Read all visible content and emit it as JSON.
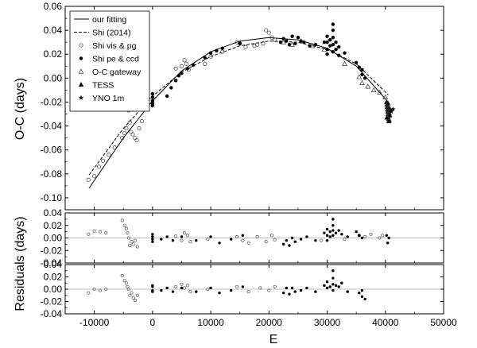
{
  "chart_data": [
    {
      "type": "scatter",
      "panel": "top",
      "xlabel": "",
      "ylabel": "O-C (days)",
      "xlim": [
        -15000,
        50000
      ],
      "ylim": [
        -0.11,
        0.06
      ],
      "yticks": [
        "0.06",
        "0.04",
        "0.02",
        "0.00",
        "-0.02",
        "-0.04",
        "-0.06",
        "-0.08",
        "-0.10"
      ],
      "ytick_values": [
        0.06,
        0.04,
        0.02,
        0.0,
        -0.02,
        -0.04,
        -0.06,
        -0.08,
        -0.1
      ],
      "legend_position": "top-left",
      "legend": [
        {
          "label": "our fitting",
          "style": "solid-line"
        },
        {
          "label": "Shi (2014)",
          "style": "dashed-line"
        },
        {
          "label": "Shi vis & pg",
          "style": "open-circle"
        },
        {
          "label": "Shi pe & ccd",
          "style": "filled-circle"
        },
        {
          "label": "O-C gateway",
          "style": "open-triangle"
        },
        {
          "label": "TESS",
          "style": "filled-triangle"
        },
        {
          "label": "YNO 1m",
          "style": "star"
        }
      ],
      "curves": {
        "our_fitting": {
          "x": [
            -10900,
            -5000,
            0,
            5000,
            10000,
            15000,
            20000,
            25000,
            30000,
            35000,
            40500
          ],
          "y": [
            -0.092,
            -0.05,
            -0.019,
            0.006,
            0.022,
            0.031,
            0.034,
            0.032,
            0.025,
            0.01,
            -0.02
          ]
        },
        "shi_2014": {
          "x": [
            -10900,
            -5000,
            0,
            5000,
            10000,
            15000,
            20000,
            25000,
            30000,
            35000,
            40500
          ],
          "y": [
            -0.081,
            -0.042,
            -0.015,
            0.005,
            0.018,
            0.027,
            0.031,
            0.03,
            0.024,
            0.012,
            -0.014
          ]
        }
      },
      "series": [
        {
          "name": "Shi vis & pg",
          "marker": "open-circle",
          "x": [
            -11000,
            -10000,
            -9200,
            -8500,
            -7500,
            -6500,
            -5200,
            -4800,
            -4500,
            -4300,
            -4100,
            -3900,
            -3700,
            -3400,
            -3000,
            -2700,
            -2300,
            -1800,
            4000,
            5000,
            5500,
            5800,
            6200,
            9000,
            10000,
            12000,
            14500,
            15000,
            16000,
            17500,
            18000,
            19000,
            19500,
            20000,
            20500,
            21000
          ],
          "y": [
            -0.085,
            -0.082,
            -0.074,
            -0.069,
            -0.064,
            -0.058,
            -0.05,
            -0.046,
            -0.042,
            -0.017,
            -0.027,
            -0.037,
            -0.045,
            -0.047,
            -0.05,
            -0.052,
            -0.042,
            -0.036,
            0.008,
            0.01,
            0.015,
            0.012,
            0.007,
            0.012,
            0.018,
            0.022,
            0.03,
            0.029,
            0.026,
            0.027,
            0.028,
            0.029,
            0.04,
            0.038,
            0.034,
            0.032
          ]
        },
        {
          "name": "Shi pe & ccd",
          "marker": "filled-circle",
          "x": [
            0,
            0,
            0,
            0,
            0,
            2500,
            3200,
            4000,
            4500,
            5000,
            6000,
            7000,
            9000,
            10000,
            11000,
            12000,
            15000,
            22000,
            22500,
            23000,
            23500,
            24000,
            24500,
            25000,
            25500,
            26000,
            27000,
            28000,
            29500,
            30000,
            30000,
            30000,
            30000,
            30500,
            30500,
            31000,
            31000,
            31000,
            31000,
            31000,
            31500,
            31500,
            32000,
            32000,
            33000,
            35000,
            35500,
            36000,
            36000,
            36500
          ],
          "y": [
            -0.013,
            -0.016,
            -0.019,
            -0.021,
            -0.023,
            -0.015,
            -0.008,
            -0.002,
            0.002,
            0.004,
            0.008,
            0.011,
            0.017,
            0.021,
            0.023,
            0.025,
            0.029,
            0.03,
            0.033,
            0.031,
            0.028,
            0.035,
            0.029,
            0.034,
            0.031,
            0.03,
            0.027,
            0.028,
            0.03,
            0.035,
            0.03,
            0.024,
            0.02,
            0.032,
            0.027,
            0.045,
            0.04,
            0.034,
            0.028,
            0.022,
            0.03,
            0.024,
            0.026,
            0.019,
            0.021,
            0.013,
            0.009,
            0.007,
            0.003,
            0.0
          ]
        },
        {
          "name": "O-C gateway",
          "marker": "open-triangle",
          "x": [
            22500,
            24000,
            25500,
            27500,
            29500,
            33000,
            35500,
            36000,
            37000,
            38000,
            39000,
            40000
          ],
          "y": [
            0.03,
            0.028,
            0.031,
            0.027,
            0.024,
            0.012,
            0.001,
            -0.004,
            -0.007,
            -0.01,
            -0.012,
            -0.016
          ]
        },
        {
          "name": "TESS",
          "marker": "filled-triangle",
          "x": [
            40200,
            40250,
            40300,
            40350,
            40400,
            40450,
            40500,
            40550,
            40600,
            40650,
            40700,
            40750,
            40800,
            40250,
            40450,
            40650
          ],
          "y": [
            -0.02,
            -0.022,
            -0.024,
            -0.026,
            -0.028,
            -0.03,
            -0.032,
            -0.034,
            -0.036,
            -0.029,
            -0.025,
            -0.031,
            -0.027,
            -0.033,
            -0.021,
            -0.035
          ]
        },
        {
          "name": "YNO 1m",
          "marker": "star",
          "x": [
            41000,
            41300
          ],
          "y": [
            -0.028,
            -0.026
          ]
        }
      ]
    },
    {
      "type": "scatter",
      "panel": "middle",
      "xlim": [
        -15000,
        50000
      ],
      "ylim": [
        -0.04,
        0.04
      ],
      "yticks": [
        "0.04",
        "0.02",
        "0.00",
        "-0.02",
        "-0.04"
      ],
      "ytick_values": [
        0.04,
        0.02,
        0.0,
        -0.02,
        -0.04
      ],
      "series": [
        {
          "name": "open",
          "marker": "open-circle",
          "x": [
            -11000,
            -10000,
            -9000,
            -8000,
            -5200,
            -4800,
            -4500,
            -4300,
            -4100,
            -3900,
            -3600,
            -3300,
            -3000,
            -2600,
            4000,
            5000,
            5500,
            6000,
            6500,
            9500,
            14500,
            15500,
            16500,
            18000,
            19500,
            20500,
            21000,
            29000,
            33000,
            35500,
            36500,
            37500,
            39000,
            39500
          ],
          "y": [
            0.006,
            0.011,
            0.01,
            0.008,
            0.028,
            0.02,
            0.015,
            0.008,
            0.0,
            -0.012,
            -0.006,
            -0.01,
            -0.004,
            -0.014,
            0.003,
            -0.004,
            0.008,
            0.004,
            -0.006,
            -0.002,
            0.002,
            -0.004,
            -0.008,
            0.002,
            -0.006,
            0.004,
            -0.003,
            -0.004,
            -0.002,
            0.004,
            0.002,
            0.006,
            0.0,
            0.004
          ]
        },
        {
          "name": "filled",
          "marker": "filled-circle",
          "x": [
            0,
            0,
            0,
            0,
            1500,
            2500,
            3500,
            5000,
            7500,
            10000,
            11500,
            13500,
            15500,
            22500,
            23000,
            23500,
            24000,
            24500,
            25500,
            26500,
            28000,
            29500,
            30000,
            30000,
            30000,
            30500,
            30500,
            31000,
            31000,
            31000,
            31000,
            31500,
            32000,
            32500,
            33500,
            35000,
            35500,
            36000,
            40200,
            40400,
            40600
          ],
          "y": [
            0.002,
            -0.002,
            -0.006,
            0.006,
            -0.002,
            0.002,
            -0.004,
            0.002,
            -0.004,
            0.002,
            -0.008,
            -0.002,
            0.004,
            -0.01,
            -0.004,
            -0.012,
            0.0,
            -0.006,
            -0.002,
            0.002,
            -0.004,
            0.008,
            0.014,
            0.004,
            -0.004,
            0.01,
            0.002,
            0.03,
            0.02,
            0.012,
            0.004,
            0.008,
            0.012,
            0.006,
            0.002,
            0.01,
            0.004,
            0.0,
            0.004,
            -0.008,
            0.0
          ]
        }
      ]
    },
    {
      "type": "scatter",
      "panel": "bottom",
      "xlabel": "E",
      "ylabel": "Residuals (days)",
      "xlim": [
        -15000,
        50000
      ],
      "ylim": [
        -0.04,
        0.04
      ],
      "xticks": [
        "-10000",
        "0",
        "10000",
        "20000",
        "30000",
        "40000",
        "50000"
      ],
      "xtick_values": [
        -10000,
        0,
        10000,
        20000,
        30000,
        40000,
        50000
      ],
      "yticks": [
        "0.04",
        "0.02",
        "0.00",
        "-0.02",
        "-0.04"
      ],
      "ytick_values": [
        0.04,
        0.02,
        0.0,
        -0.02,
        -0.04
      ],
      "series": [
        {
          "name": "open",
          "marker": "open-circle",
          "x": [
            -11000,
            -10000,
            -9000,
            -8000,
            -5200,
            -4800,
            -4500,
            -4300,
            -4100,
            -3900,
            -3600,
            -3300,
            -3000,
            -2600,
            4000,
            5000,
            5500,
            6000,
            6500,
            9500,
            14500,
            16500,
            18500,
            20000,
            21000
          ],
          "y": [
            -0.006,
            0.0,
            -0.002,
            0.0,
            0.022,
            0.014,
            0.01,
            0.004,
            0.0,
            -0.01,
            -0.006,
            -0.014,
            -0.018,
            -0.01,
            0.004,
            0.008,
            0.002,
            0.006,
            -0.004,
            0.0,
            0.004,
            -0.004,
            0.002,
            -0.002,
            0.004
          ]
        },
        {
          "name": "filled",
          "marker": "filled-circle",
          "x": [
            0,
            0,
            0,
            0,
            1500,
            2500,
            3500,
            5000,
            7500,
            10000,
            11500,
            13500,
            15500,
            22500,
            23000,
            23500,
            24000,
            24500,
            25500,
            26500,
            28000,
            29500,
            30000,
            30000,
            30500,
            31000,
            31000,
            31000,
            31000,
            31500,
            32000,
            32500,
            33500,
            35500,
            36000,
            36000,
            36500
          ],
          "y": [
            0.004,
            -0.002,
            -0.004,
            0.006,
            -0.002,
            0.002,
            -0.004,
            0.002,
            -0.004,
            0.002,
            -0.006,
            -0.002,
            0.004,
            -0.006,
            0.002,
            -0.008,
            0.002,
            -0.004,
            -0.002,
            0.002,
            -0.004,
            0.006,
            0.012,
            0.002,
            0.004,
            0.03,
            0.018,
            0.008,
            -0.002,
            0.006,
            0.004,
            0.01,
            -0.004,
            -0.006,
            -0.012,
            -0.002,
            -0.016
          ]
        }
      ]
    }
  ]
}
